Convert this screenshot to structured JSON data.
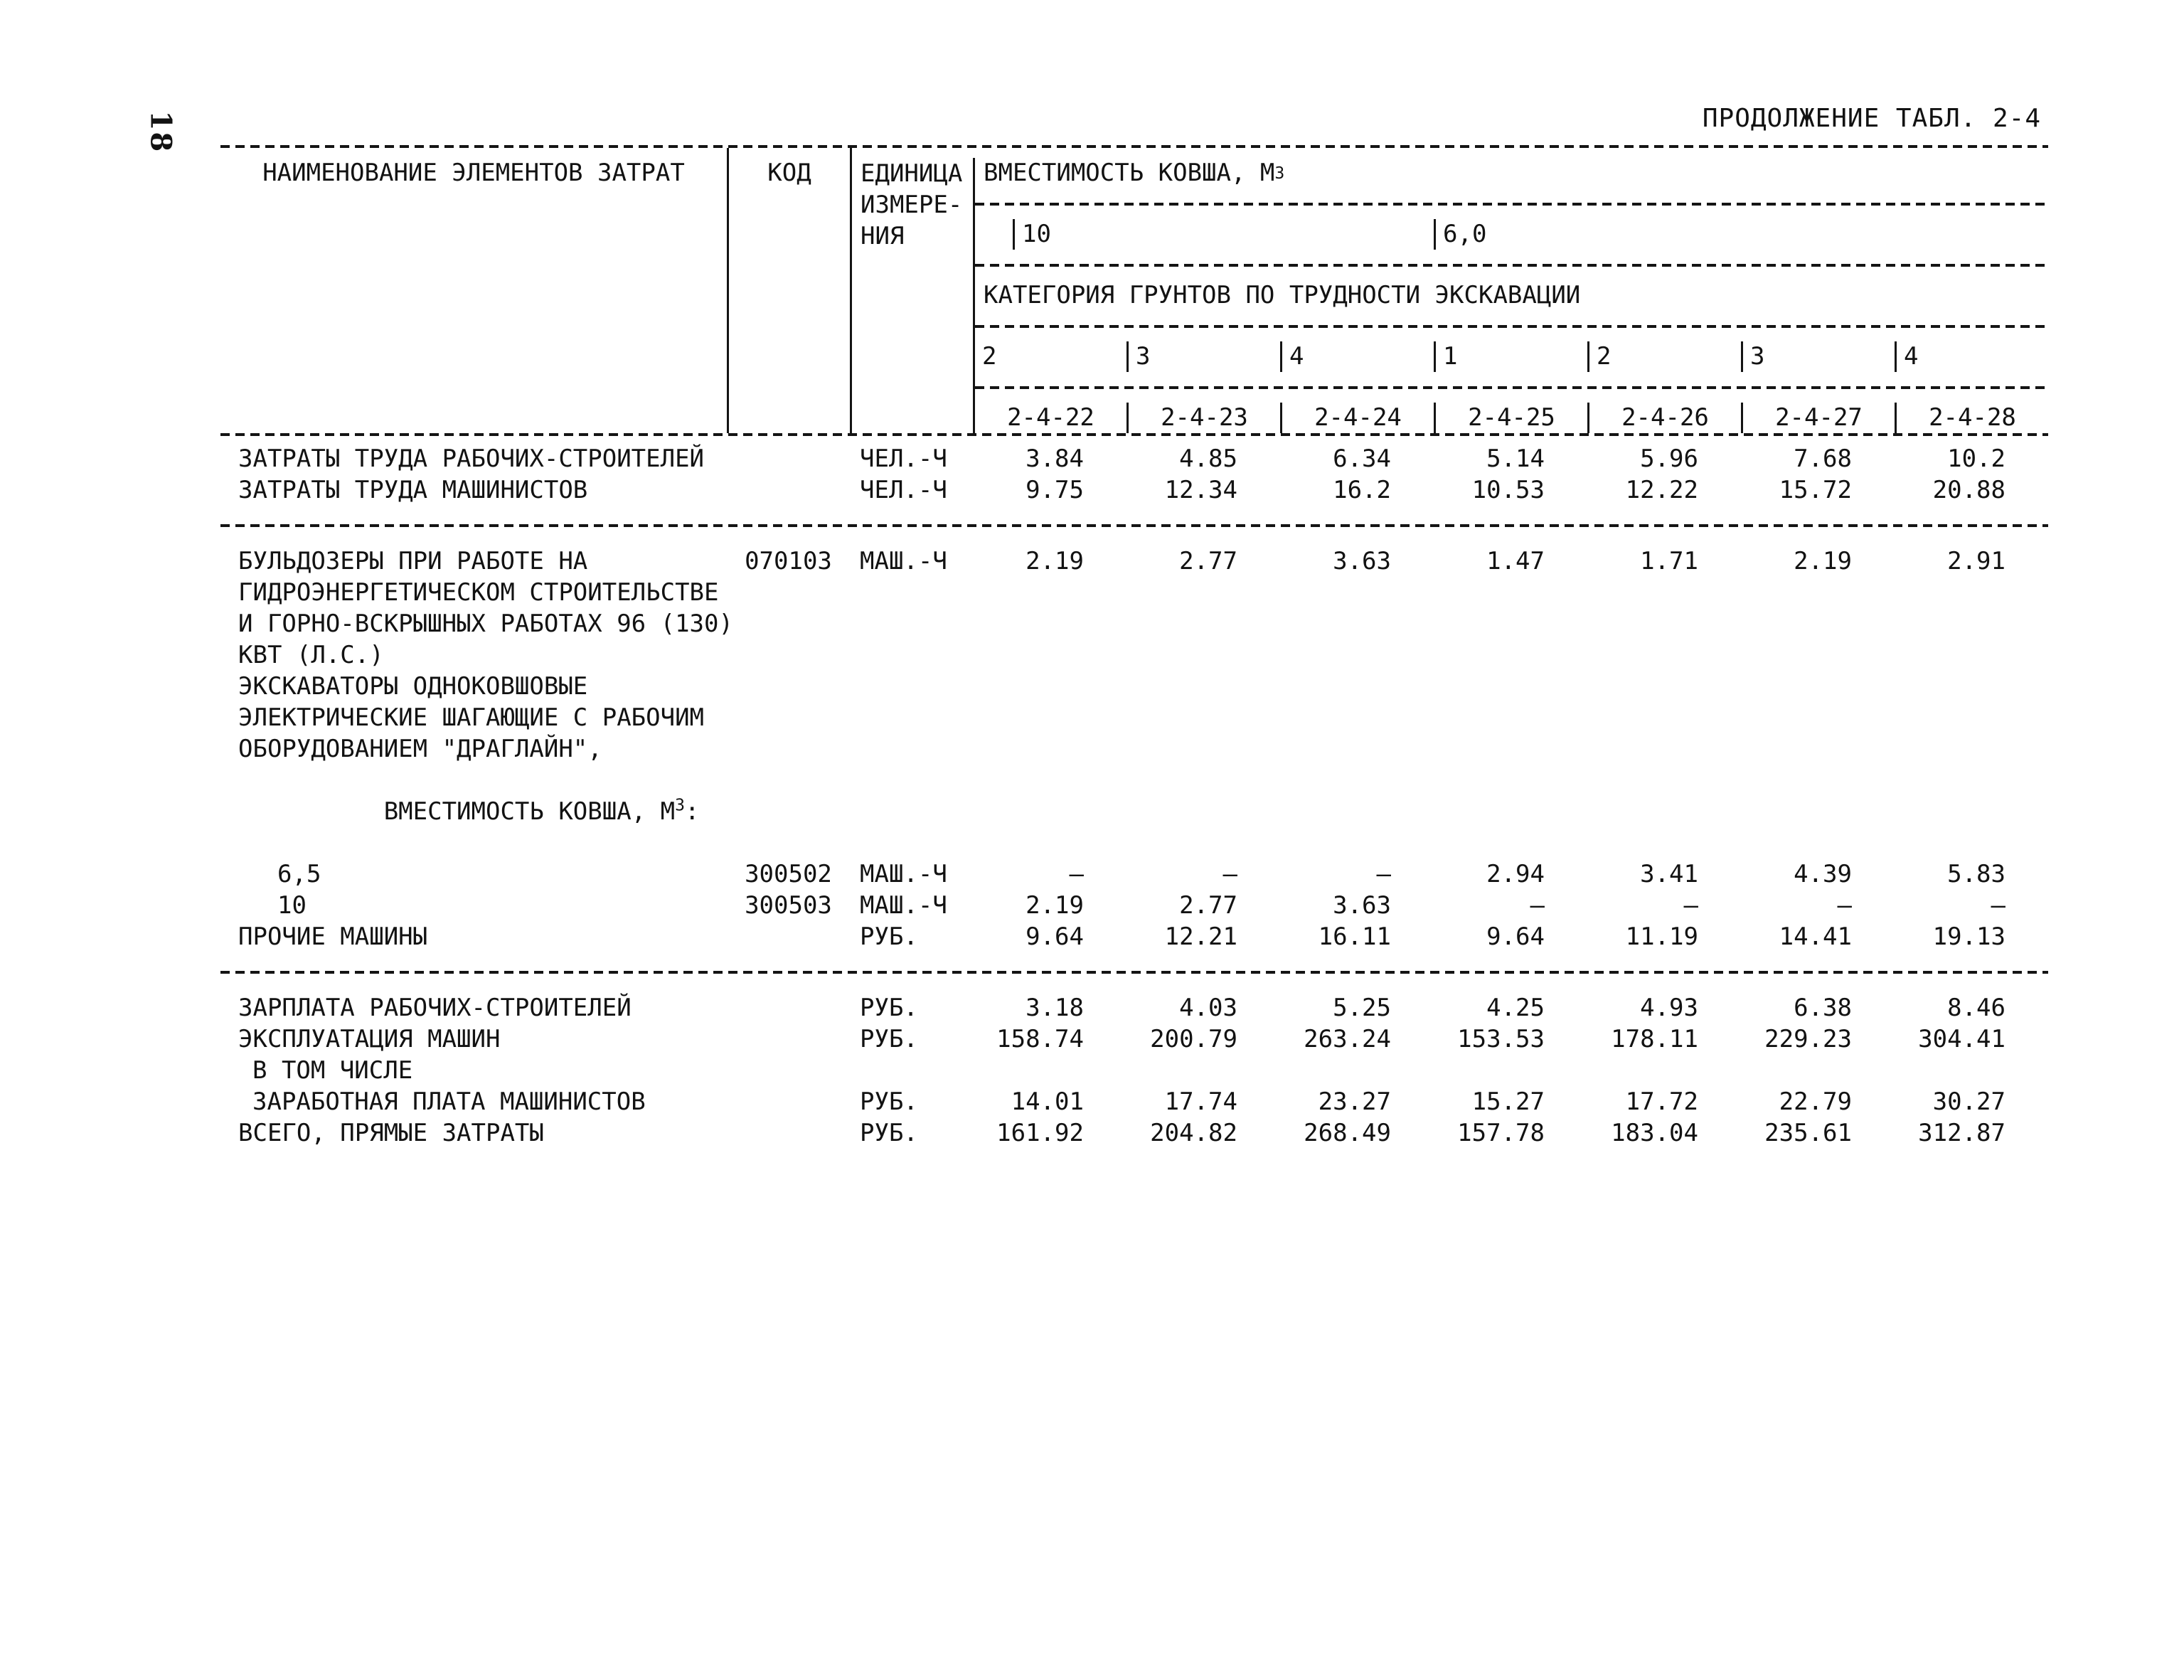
{
  "page": {
    "number": "18",
    "continuation": "ПРОДОЛЖЕНИЕ ТАБЛ. 2-4"
  },
  "table": {
    "header": {
      "name": "НАИМЕНОВАНИЕ ЭЛЕМЕНТОВ ЗАТРАТ",
      "code": "КОД",
      "unit_lines": [
        "ЕДИНИЦА",
        "ИЗМЕРЕ-",
        "НИЯ"
      ],
      "bucket_title": {
        "pre": "ВМЕСТИМОСТЬ КОВША, М",
        "sup": "3"
      },
      "buckets": [
        "10",
        "6,0"
      ],
      "category_title": "КАТЕГОРИЯ ГРУНТОВ ПО ТРУДНОСТИ ЭКСКАВАЦИИ",
      "categories": [
        "2",
        "3",
        "4",
        "1",
        "2",
        "3",
        "4"
      ],
      "codes": [
        "2-4-22",
        "2-4-23",
        "2-4-24",
        "2-4-25",
        "2-4-26",
        "2-4-27",
        "2-4-28"
      ]
    },
    "sections": [
      {
        "rows": [
          {
            "name_lines": [
              "ЗАТРАТЫ ТРУДА РАБОЧИХ-СТРОИТЕЛЕЙ"
            ],
            "code": "",
            "unit": "ЧЕЛ.-Ч",
            "values": [
              "3.84",
              "4.85",
              "6.34",
              "5.14",
              "5.96",
              "7.68",
              "10.2"
            ]
          },
          {
            "name_lines": [
              "ЗАТРАТЫ ТРУДА МАШИНИСТОВ"
            ],
            "code": "",
            "unit": "ЧЕЛ.-Ч",
            "values": [
              "9.75",
              "12.34",
              "16.2",
              "10.53",
              "12.22",
              "15.72",
              "20.88"
            ]
          }
        ]
      },
      {
        "rows": [
          {
            "name_lines": [
              "БУЛЬДОЗЕРЫ ПРИ РАБОТЕ НА",
              "ГИДРОЭНЕРГЕТИЧЕСКОМ СТРОИТЕЛЬСТВЕ",
              "И ГОРНО-ВСКРЫШНЫХ РАБОТАХ 96 (130)",
              "КВТ (Л.С.)"
            ],
            "code": "070103",
            "unit": "МАШ.-Ч",
            "values": [
              "2.19",
              "2.77",
              "3.63",
              "1.47",
              "1.71",
              "2.19",
              "2.91"
            ]
          },
          {
            "name_lines": [
              "ЭКСКАВАТОРЫ ОДНОКОВШОВЫЕ",
              "ЭЛЕКТРИЧЕСКИЕ ШАГАЮЩИЕ С РАБОЧИМ",
              "ОБОРУДОВАНИЕМ \"ДРАГЛАЙН\","
            ],
            "name_sup": {
              "pre": "ВМЕСТИМОСТЬ КОВША, М",
              "sup": "3",
              "post": ":"
            }
          },
          {
            "name_lines": [
              "6,5"
            ],
            "code": "300502",
            "unit": "МАШ.-Ч",
            "values": [
              "–",
              "–",
              "–",
              "2.94",
              "3.41",
              "4.39",
              "5.83"
            ]
          },
          {
            "name_lines": [
              "10"
            ],
            "code": "300503",
            "unit": "МАШ.-Ч",
            "values": [
              "2.19",
              "2.77",
              "3.63",
              "–",
              "–",
              "–",
              "–"
            ]
          },
          {
            "name_lines": [
              "ПРОЧИЕ МАШИНЫ"
            ],
            "code": "",
            "unit": "РУБ.",
            "values": [
              "9.64",
              "12.21",
              "16.11",
              "9.64",
              "11.19",
              "14.41",
              "19.13"
            ]
          }
        ]
      },
      {
        "rows": [
          {
            "name_lines": [
              "ЗАРПЛАТА РАБОЧИХ-СТРОИТЕЛЕЙ"
            ],
            "code": "",
            "unit": "РУБ.",
            "values": [
              "3.18",
              "4.03",
              "5.25",
              "4.25",
              "4.93",
              "6.38",
              "8.46"
            ]
          },
          {
            "name_lines": [
              "ЭКСПЛУАТАЦИЯ МАШИН"
            ],
            "code": "",
            "unit": "РУБ.",
            "values": [
              "158.74",
              "200.79",
              "263.24",
              "153.53",
              "178.11",
              "229.23",
              "304.41"
            ]
          },
          {
            "name_lines": [
              "В ТОМ ЧИСЛЕ"
            ]
          },
          {
            "name_lines": [
              "ЗАРАБОТНАЯ ПЛАТА МАШИНИСТОВ"
            ],
            "code": "",
            "unit": "РУБ.",
            "values": [
              "14.01",
              "17.74",
              "23.27",
              "15.27",
              "17.72",
              "22.79",
              "30.27"
            ]
          },
          {
            "name_lines": [
              "ВСЕГО, ПРЯМЫЕ ЗАТРАТЫ"
            ],
            "code": "",
            "unit": "РУБ.",
            "values": [
              "161.92",
              "204.82",
              "268.49",
              "157.78",
              "183.04",
              "235.61",
              "312.87"
            ]
          }
        ]
      }
    ]
  }
}
